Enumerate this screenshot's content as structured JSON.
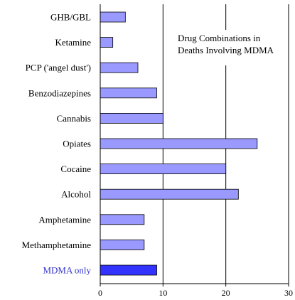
{
  "chart_data": {
    "type": "bar",
    "orientation": "horizontal",
    "title_lines": [
      "Drug Combinations in",
      "Deaths Involving MDMA"
    ],
    "categories": [
      "GHB/GBL",
      "Ketamine",
      "PCP ('angel dust')",
      "Benzodiazepines",
      "Cannabis",
      "Opiates",
      "Cocaine",
      "Alcohol",
      "Amphetamine",
      "Methamphetamine",
      "MDMA only"
    ],
    "values": [
      4,
      2,
      6,
      9,
      10,
      25,
      20,
      22,
      7,
      7,
      9
    ],
    "highlight_category": "MDMA only",
    "xlim": [
      0,
      30
    ],
    "xticks": [
      0,
      10,
      20,
      30
    ],
    "grid": "vertical major gridlines",
    "xlabel": "",
    "ylabel": "",
    "colors": {
      "bar": "#9999ff",
      "bar_highlight": "#3333ff",
      "label_highlight": "#3333cc",
      "text": "#000000",
      "grid": "#000000"
    }
  }
}
